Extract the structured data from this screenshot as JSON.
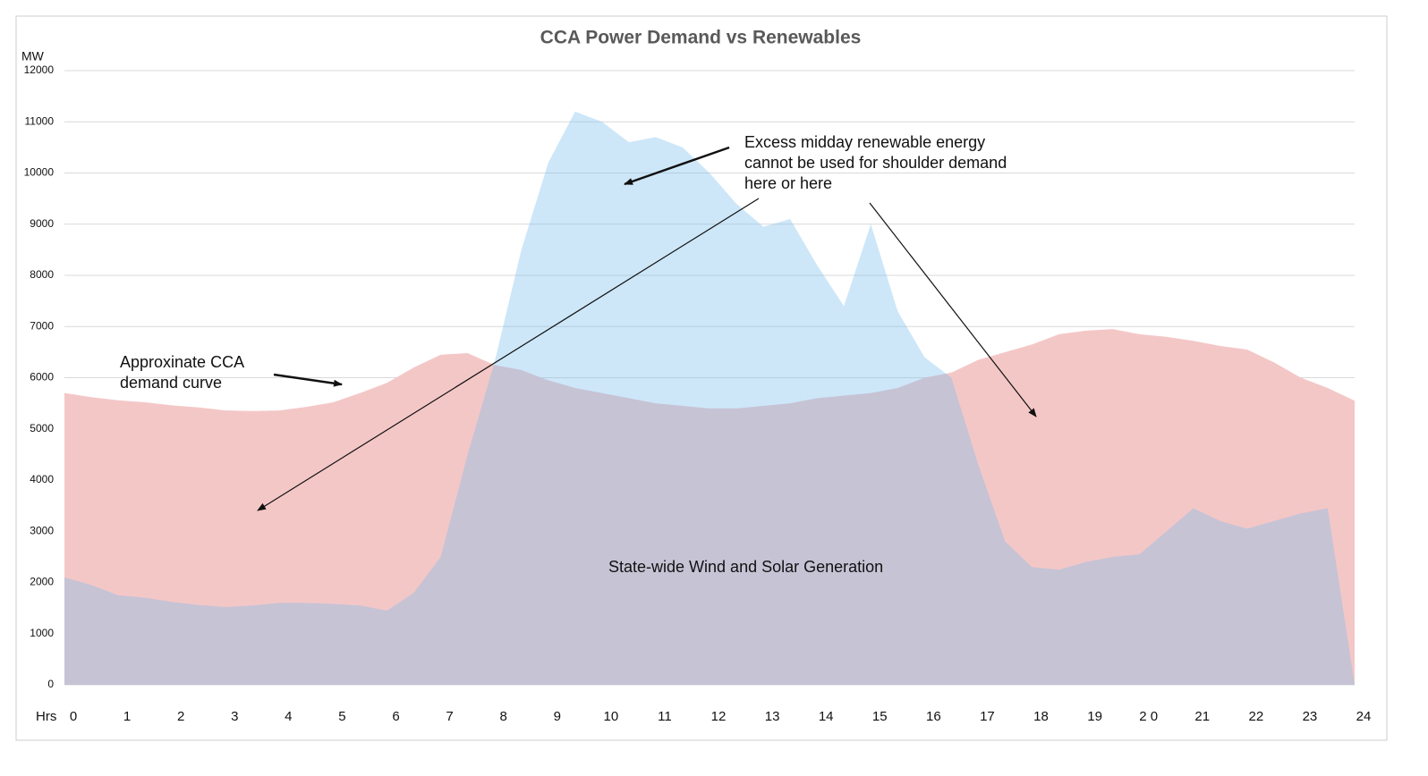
{
  "chart_data": {
    "type": "area",
    "title": "CCA Power Demand vs Renewables",
    "y_label": "MW",
    "x_label": "Hrs",
    "x": [
      0,
      0.5,
      1,
      1.5,
      2,
      2.5,
      3,
      3.5,
      4,
      4.5,
      5,
      5.5,
      6,
      6.5,
      7,
      7.5,
      8,
      8.5,
      9,
      9.5,
      10,
      10.5,
      11,
      11.5,
      12,
      12.5,
      13,
      13.5,
      14,
      14.5,
      15,
      15.5,
      16,
      16.5,
      17,
      17.5,
      18,
      18.5,
      19,
      19.5,
      20,
      20.5,
      21,
      21.5,
      22,
      22.5,
      23,
      23.5,
      24
    ],
    "series": [
      {
        "name": "Approximate CCA demand curve",
        "color": "#f4c7c7",
        "values": [
          5700,
          5620,
          5560,
          5520,
          5460,
          5420,
          5360,
          5350,
          5360,
          5430,
          5520,
          5700,
          5900,
          6200,
          6450,
          6480,
          6250,
          6150,
          5950,
          5800,
          5700,
          5600,
          5500,
          5450,
          5400,
          5400,
          5450,
          5500,
          5600,
          5650,
          5700,
          5800,
          6000,
          6100,
          6350,
          6500,
          6650,
          6850,
          6920,
          6950,
          6850,
          6800,
          6720,
          6620,
          6550,
          6300,
          6000,
          5800,
          5550
        ]
      },
      {
        "name": "State-wide Wind and Solar Generation",
        "color": "#78beef",
        "values": [
          2100,
          1950,
          1750,
          1700,
          1620,
          1560,
          1520,
          1550,
          1600,
          1600,
          1580,
          1550,
          1450,
          1800,
          2500,
          4500,
          6300,
          8500,
          10200,
          11200,
          11000,
          10600,
          10700,
          10500,
          10000,
          9400,
          8950,
          9100,
          8200,
          7400,
          9000,
          7300,
          6400,
          6000,
          4300,
          2800,
          2300,
          2250,
          2400,
          2500,
          2550,
          3000,
          3450,
          3200,
          3050,
          3200,
          3350,
          3450,
          0
        ]
      }
    ],
    "ylim": [
      0,
      12000
    ],
    "yticks": [
      0,
      1000,
      2000,
      3000,
      4000,
      5000,
      6000,
      7000,
      8000,
      9000,
      10000,
      11000,
      12000
    ],
    "xlim": [
      0,
      24
    ],
    "xticks": [
      0,
      1,
      2,
      3,
      4,
      5,
      6,
      7,
      8,
      9,
      10,
      11,
      12,
      13,
      14,
      15,
      16,
      17,
      18,
      19,
      {
        "value": 20,
        "label": "2 0"
      },
      21,
      22,
      23,
      24
    ],
    "grid": true,
    "annotations": [
      [
        "Approxinate CCA",
        "demand curve"
      ],
      [
        "Excess midday renewable energy",
        "cannot be used for shoulder demand",
        "here or here"
      ]
    ]
  }
}
